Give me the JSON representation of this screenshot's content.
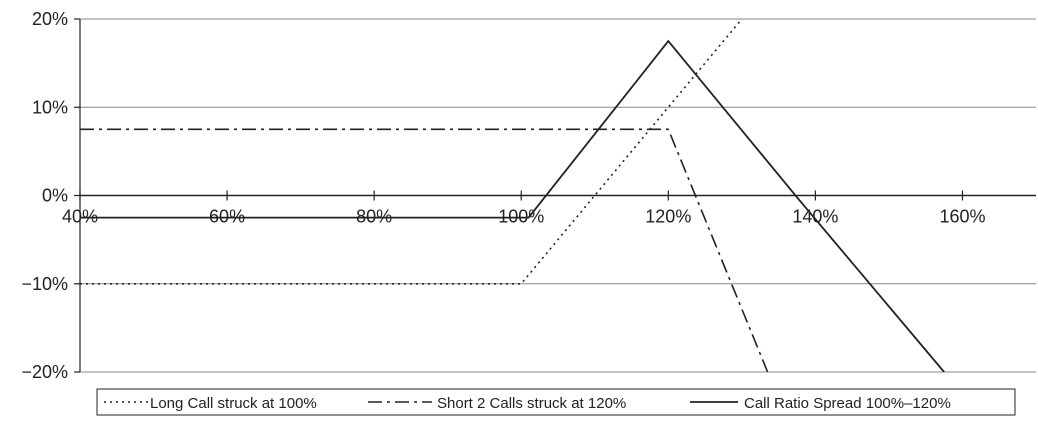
{
  "chart_data": {
    "type": "line",
    "title": "",
    "xlabel": "",
    "ylabel": "",
    "xlim": [
      0.4,
      1.7
    ],
    "ylim": [
      -0.2,
      0.2
    ],
    "x_ticks": [
      {
        "value": 0.4,
        "label": "40%"
      },
      {
        "value": 0.6,
        "label": "60%"
      },
      {
        "value": 0.8,
        "label": "80%"
      },
      {
        "value": 1.0,
        "label": "100%"
      },
      {
        "value": 1.2,
        "label": "120%"
      },
      {
        "value": 1.4,
        "label": "140%"
      },
      {
        "value": 1.6,
        "label": "160%"
      }
    ],
    "y_ticks": [
      {
        "value": 0.2,
        "label": "20%"
      },
      {
        "value": 0.1,
        "label": "10%"
      },
      {
        "value": 0.0,
        "label": "0%"
      },
      {
        "value": -0.1,
        "label": "−10%"
      },
      {
        "value": -0.2,
        "label": "−20%"
      }
    ],
    "grid": "horizontal",
    "legend_position": "bottom",
    "series": [
      {
        "name": "Long Call struck at 100%",
        "style": "dotted",
        "color": "#222222",
        "points": [
          [
            0.4,
            -0.1
          ],
          [
            1.0,
            -0.1
          ],
          [
            1.3,
            0.2
          ]
        ]
      },
      {
        "name": "Short 2 Calls struck at 120%",
        "style": "dashdot",
        "color": "#222222",
        "points": [
          [
            0.4,
            0.075
          ],
          [
            1.2,
            0.075
          ],
          [
            1.335,
            -0.2
          ]
        ]
      },
      {
        "name": "Call Ratio Spread 100%–120%",
        "style": "solid",
        "color": "#222222",
        "points": [
          [
            0.4,
            -0.025
          ],
          [
            1.01,
            -0.025
          ],
          [
            1.2,
            0.175
          ],
          [
            1.375,
            -0.002
          ],
          [
            1.575,
            -0.2
          ]
        ]
      }
    ]
  }
}
